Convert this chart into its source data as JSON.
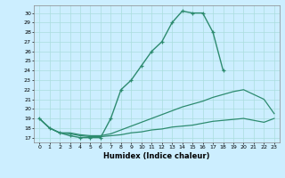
{
  "title": "",
  "xlabel": "Humidex (Indice chaleur)",
  "bg_color": "#cceeff",
  "line_color": "#2d8b6f",
  "grid_color": "#aadddd",
  "xlim": [
    -0.5,
    23.5
  ],
  "ylim": [
    16.5,
    30.8
  ],
  "xticks": [
    0,
    1,
    2,
    3,
    4,
    5,
    6,
    7,
    8,
    9,
    10,
    11,
    12,
    13,
    14,
    15,
    16,
    17,
    18,
    19,
    20,
    21,
    22,
    23
  ],
  "yticks": [
    17,
    18,
    19,
    20,
    21,
    22,
    23,
    24,
    25,
    26,
    27,
    28,
    29,
    30
  ],
  "lines": [
    {
      "x": [
        0,
        1,
        2,
        3,
        4,
        5,
        6,
        7,
        8,
        9,
        10,
        11,
        12,
        13,
        14,
        15,
        16,
        17,
        18
      ],
      "y": [
        19,
        18,
        17.5,
        17.2,
        17.0,
        17.0,
        17.0,
        19.0,
        22.0,
        23.0,
        24.5,
        26.0,
        27.0,
        29.0,
        30.2,
        30.0,
        30.0,
        28.0,
        24.0
      ],
      "marker": "+",
      "lw": 1.0
    },
    {
      "x": [
        0,
        1,
        2,
        3,
        4,
        5,
        6,
        7,
        8,
        9,
        10,
        11,
        12,
        13,
        14,
        15,
        16,
        17,
        18,
        19,
        20,
        21,
        22,
        23
      ],
      "y": [
        19,
        18,
        17.5,
        17.5,
        17.3,
        17.2,
        17.2,
        17.4,
        17.8,
        18.2,
        18.6,
        19.0,
        19.4,
        19.8,
        20.2,
        20.5,
        20.8,
        21.2,
        21.5,
        21.8,
        22.0,
        21.5,
        21.0,
        19.5
      ],
      "marker": null,
      "lw": 0.9
    },
    {
      "x": [
        0,
        1,
        2,
        3,
        4,
        5,
        6,
        7,
        8,
        9,
        10,
        11,
        12,
        13,
        14,
        15,
        16,
        17,
        18,
        19,
        20,
        21,
        22,
        23
      ],
      "y": [
        19,
        18,
        17.5,
        17.4,
        17.2,
        17.1,
        17.1,
        17.2,
        17.3,
        17.5,
        17.6,
        17.8,
        17.9,
        18.1,
        18.2,
        18.3,
        18.5,
        18.7,
        18.8,
        18.9,
        19.0,
        18.8,
        18.6,
        19.0
      ],
      "marker": null,
      "lw": 0.9
    }
  ]
}
